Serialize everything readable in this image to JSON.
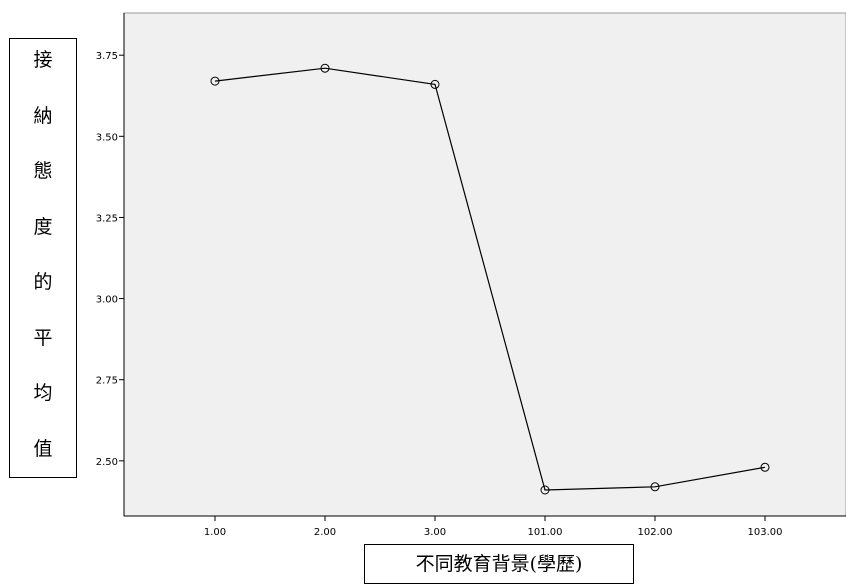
{
  "chart_data": {
    "type": "line",
    "categories": [
      "1.00",
      "2.00",
      "3.00",
      "101.00",
      "102.00",
      "103.00"
    ],
    "series": [
      {
        "values": [
          3.67,
          3.71,
          3.66,
          2.41,
          2.42,
          2.48
        ]
      }
    ],
    "ylim": [
      2.33,
      3.88
    ],
    "yticks": [
      "2.50",
      "2.75",
      "3.00",
      "3.25",
      "3.50",
      "3.75"
    ],
    "ylabel_chars": [
      "接",
      "納",
      "態",
      "度",
      "的",
      "平",
      "均",
      "值"
    ],
    "xlabel": "不同教育背景(學歷)",
    "grid": false,
    "colors": {
      "plot_bg": "#f0f0f0",
      "line": "#000000",
      "axis": "#000000"
    }
  }
}
